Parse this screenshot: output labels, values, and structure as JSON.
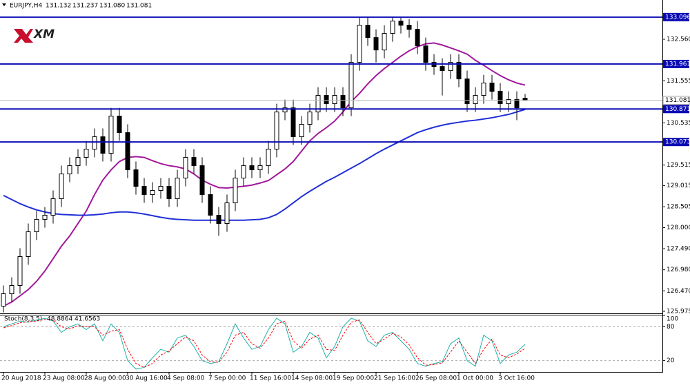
{
  "chart_data": [
    {
      "type": "candlestick",
      "title": "EURJPY,H4",
      "logo": "XM",
      "ohlc_labels": [
        "131.132",
        "131.237",
        "131.080",
        "131.081"
      ],
      "categories": [
        "20 Aug 2018",
        null,
        null,
        null,
        null,
        "23 Aug 08:00",
        null,
        null,
        null,
        null,
        "28 Aug 00:00",
        null,
        null,
        null,
        null,
        "30 Aug 16:00",
        null,
        null,
        null,
        null,
        "4 Sep 08:00",
        null,
        null,
        null,
        null,
        "7 Sep 00:00",
        null,
        null,
        null,
        null,
        "11 Sep 16:00",
        null,
        null,
        null,
        null,
        "14 Sep 08:00",
        null,
        null,
        null,
        null,
        "19 Sep 00:00",
        null,
        null,
        null,
        null,
        "21 Sep 16:00",
        null,
        null,
        null,
        null,
        "26 Sep 08:00",
        null,
        null,
        null,
        null,
        "1 Oct 00:00",
        null,
        null,
        null,
        null,
        "3 Oct 16:00",
        null,
        null,
        null
      ],
      "open": [
        126.1,
        126.4,
        126.6,
        127.3,
        127.9,
        128.2,
        128.3,
        128.7,
        129.3,
        129.5,
        129.7,
        129.9,
        130.2,
        129.8,
        130.7,
        130.3,
        129.4,
        129.0,
        128.8,
        128.9,
        129.0,
        128.7,
        129.2,
        129.7,
        129.5,
        128.8,
        128.3,
        128.1,
        128.6,
        129.2,
        129.5,
        129.4,
        129.5,
        129.9,
        130.8,
        130.9,
        130.2,
        130.5,
        130.8,
        131.2,
        131.0,
        131.2,
        130.9,
        132.0,
        132.9,
        132.6,
        132.3,
        132.7,
        133.0,
        132.9,
        132.8,
        132.4,
        132.0,
        131.9,
        131.8,
        132.0,
        131.6,
        131.0,
        131.2,
        131.5,
        131.3,
        131.0,
        131.1,
        131.132
      ],
      "high": [
        126.6,
        126.8,
        127.5,
        128.1,
        128.4,
        128.5,
        128.9,
        129.5,
        129.7,
        129.9,
        130.1,
        130.4,
        130.4,
        130.9,
        130.9,
        130.5,
        129.6,
        129.2,
        129.1,
        129.2,
        129.2,
        129.4,
        129.9,
        129.9,
        129.7,
        129.0,
        128.5,
        128.8,
        129.4,
        129.7,
        129.7,
        129.7,
        130.1,
        131.0,
        131.1,
        131.1,
        130.7,
        131.0,
        131.4,
        131.4,
        131.4,
        131.4,
        132.2,
        133.1,
        133.1,
        132.8,
        132.9,
        133.1,
        133.1,
        133.05,
        133.0,
        132.6,
        132.2,
        132.1,
        132.2,
        132.2,
        131.8,
        131.4,
        131.7,
        131.7,
        131.5,
        131.3,
        131.3,
        131.237
      ],
      "low": [
        125.95,
        126.2,
        126.4,
        127.1,
        127.7,
        128.0,
        128.1,
        128.5,
        129.1,
        129.3,
        129.5,
        129.7,
        129.6,
        129.6,
        130.1,
        129.2,
        128.8,
        128.6,
        128.6,
        128.7,
        128.5,
        128.5,
        129.0,
        129.3,
        128.6,
        128.1,
        127.8,
        127.9,
        128.4,
        129.0,
        129.2,
        129.2,
        129.3,
        129.7,
        130.6,
        130.0,
        130.0,
        130.3,
        130.6,
        130.8,
        130.8,
        130.7,
        130.7,
        131.8,
        132.4,
        132.0,
        132.1,
        132.5,
        132.7,
        132.6,
        132.2,
        131.8,
        131.7,
        131.2,
        131.6,
        131.4,
        130.8,
        130.8,
        131.0,
        131.1,
        130.8,
        130.8,
        130.6,
        131.08
      ],
      "close": [
        126.4,
        126.6,
        127.3,
        127.9,
        128.2,
        128.3,
        128.7,
        129.3,
        129.5,
        129.7,
        129.9,
        130.2,
        129.8,
        130.7,
        130.3,
        129.4,
        129.0,
        128.8,
        128.9,
        129.0,
        128.7,
        129.2,
        129.7,
        129.5,
        128.8,
        128.3,
        128.1,
        128.6,
        129.2,
        129.5,
        129.4,
        129.5,
        129.9,
        130.8,
        130.9,
        130.2,
        130.5,
        130.8,
        131.2,
        131.0,
        131.2,
        130.9,
        132.0,
        132.9,
        132.6,
        132.3,
        132.7,
        133.0,
        132.9,
        132.8,
        132.4,
        132.0,
        131.9,
        131.8,
        132.0,
        131.6,
        131.0,
        131.2,
        131.5,
        131.3,
        131.0,
        131.1,
        130.9,
        131.081
      ],
      "series": [
        {
          "color": "#a0189a",
          "values": [
            126.1,
            126.2,
            126.35,
            126.5,
            126.7,
            126.95,
            127.25,
            127.55,
            127.8,
            128.1,
            128.4,
            128.8,
            129.15,
            129.4,
            129.6,
            129.7,
            129.72,
            129.7,
            129.62,
            129.55,
            129.5,
            129.47,
            129.42,
            129.3,
            129.15,
            129.05,
            128.97,
            128.96,
            128.98,
            129.0,
            129.03,
            129.08,
            129.14,
            129.28,
            129.42,
            129.6,
            129.85,
            130.1,
            130.28,
            130.42,
            130.58,
            130.8,
            131.05,
            131.25,
            131.48,
            131.68,
            131.85,
            132.0,
            132.15,
            132.28,
            132.38,
            132.45,
            132.47,
            132.42,
            132.35,
            132.28,
            132.2,
            132.05,
            131.93,
            131.8,
            131.68,
            131.58,
            131.5,
            131.45
          ]
        },
        {
          "color": "#1f2fd8",
          "values": [
            128.78,
            128.68,
            128.58,
            128.5,
            128.43,
            128.38,
            128.34,
            128.32,
            128.31,
            128.3,
            128.3,
            128.31,
            128.33,
            128.36,
            128.38,
            128.38,
            128.36,
            128.33,
            128.29,
            128.25,
            128.22,
            128.2,
            128.19,
            128.18,
            128.18,
            128.18,
            128.18,
            128.18,
            128.18,
            128.18,
            128.19,
            128.2,
            128.24,
            128.32,
            128.45,
            128.6,
            128.75,
            128.88,
            129.0,
            129.12,
            129.22,
            129.33,
            129.44,
            129.55,
            129.67,
            129.79,
            129.9,
            130.0,
            130.1,
            130.2,
            130.3,
            130.37,
            130.43,
            130.48,
            130.52,
            130.55,
            130.58,
            130.6,
            130.63,
            130.66,
            130.7,
            130.74,
            130.8,
            130.86
          ]
        }
      ],
      "levels": [
        133.096,
        131.961,
        130.871,
        130.073
      ],
      "level_color": "#0a0ab4",
      "ylim": [
        125.925,
        133.51
      ],
      "yticks": [
        {
          "value": 132.56,
          "label": "132.560"
        },
        131.555,
        130.535,
        129.515,
        129.015,
        128.505,
        {
          "value": 128,
          "label": "128.000"
        },
        {
          "value": 127.49,
          "label": "127.490"
        },
        {
          "value": 126.98,
          "label": "126.980"
        },
        {
          "value": 126.47,
          "label": "126.470"
        },
        125.975
      ]
    },
    {
      "type": "line",
      "title": "Stoch(8,3,5)",
      "series": [
        {
          "color": "#20b2aa",
          "values": [
            80,
            85,
            90,
            88,
            92,
            95,
            90,
            70,
            80,
            85,
            75,
            85,
            55,
            85,
            70,
            20,
            5,
            8,
            25,
            40,
            35,
            60,
            65,
            45,
            20,
            15,
            18,
            50,
            85,
            60,
            40,
            45,
            75,
            95,
            85,
            35,
            45,
            70,
            60,
            25,
            45,
            80,
            95,
            90,
            55,
            45,
            65,
            70,
            55,
            40,
            15,
            10,
            15,
            18,
            50,
            60,
            20,
            10,
            65,
            55,
            15,
            30,
            35,
            48.8864
          ]
        },
        {
          "color": "#ff0000",
          "dashed": true,
          "values": [
            78,
            82,
            87,
            89,
            90,
            93,
            92,
            80,
            76,
            82,
            80,
            80,
            65,
            72,
            75,
            40,
            15,
            8,
            15,
            30,
            37,
            50,
            62,
            55,
            30,
            18,
            17,
            35,
            65,
            70,
            50,
            42,
            60,
            85,
            90,
            55,
            42,
            58,
            65,
            40,
            38,
            65,
            88,
            92,
            70,
            50,
            58,
            68,
            62,
            48,
            25,
            12,
            13,
            16,
            35,
            55,
            35,
            15,
            40,
            58,
            30,
            25,
            32,
            41.6563
          ]
        }
      ],
      "levels": [
        20,
        80
      ],
      "ylim": [
        0,
        100
      ],
      "yticks": [
        100,
        80,
        20
      ]
    }
  ]
}
